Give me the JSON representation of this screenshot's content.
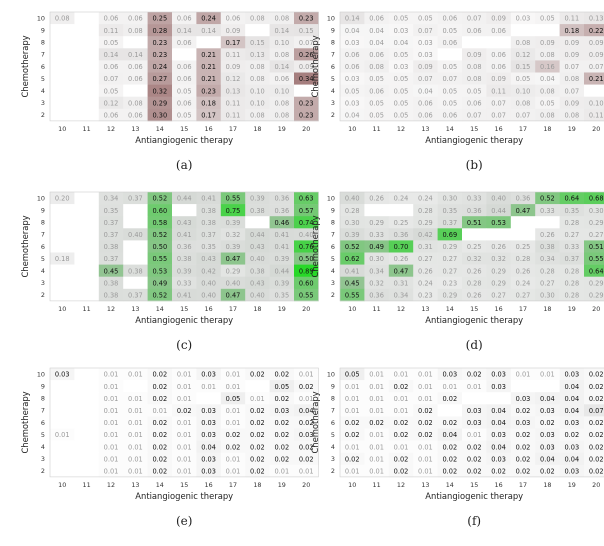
{
  "chart_data": [
    {
      "type": "heatmap",
      "panel": "a",
      "caption": "(a)",
      "xlabel": "Antiangiogenic therapy",
      "ylabel": "Chemotherapy",
      "x": [
        10,
        11,
        12,
        13,
        14,
        15,
        16,
        17,
        18,
        19,
        20
      ],
      "y": [
        10,
        9,
        8,
        7,
        6,
        5,
        4,
        3,
        2
      ],
      "colormap": "gray-brown",
      "values": [
        [
          0.08,
          null,
          0.06,
          0.06,
          0.25,
          0.06,
          0.24,
          0.06,
          0.08,
          0.08,
          0.23
        ],
        [
          null,
          null,
          0.11,
          0.08,
          0.28,
          0.14,
          0.14,
          0.09,
          null,
          0.14,
          0.15
        ],
        [
          null,
          null,
          0.05,
          null,
          0.23,
          0.06,
          null,
          0.17,
          0.15,
          0.1,
          0.07
        ],
        [
          null,
          null,
          0.14,
          0.14,
          0.23,
          null,
          0.21,
          0.11,
          0.13,
          0.08,
          0.26
        ],
        [
          null,
          null,
          0.06,
          0.06,
          0.24,
          0.06,
          0.21,
          0.09,
          0.08,
          0.14,
          0.09
        ],
        [
          null,
          null,
          0.07,
          0.06,
          0.27,
          0.06,
          0.21,
          0.12,
          0.08,
          0.06,
          0.34
        ],
        [
          null,
          null,
          0.05,
          null,
          0.32,
          0.05,
          0.23,
          0.13,
          0.1,
          0.1,
          null
        ],
        [
          null,
          null,
          0.12,
          0.08,
          0.29,
          0.06,
          0.18,
          0.11,
          0.1,
          0.08,
          0.23
        ],
        [
          null,
          null,
          0.06,
          0.06,
          0.3,
          0.05,
          0.17,
          0.11,
          0.08,
          0.08,
          0.23
        ]
      ]
    },
    {
      "type": "heatmap",
      "panel": "b",
      "caption": "(b)",
      "xlabel": "Antiangiogenic therapy",
      "ylabel": "Chemotherapy",
      "x": [
        10,
        11,
        12,
        13,
        14,
        15,
        16,
        17,
        18,
        19,
        20
      ],
      "y": [
        10,
        9,
        8,
        7,
        6,
        5,
        4,
        3,
        2
      ],
      "colormap": "gray-brown",
      "values": [
        [
          0.14,
          0.06,
          0.05,
          0.05,
          0.06,
          0.07,
          0.09,
          0.03,
          0.05,
          0.11,
          0.13
        ],
        [
          0.04,
          0.04,
          0.03,
          0.07,
          0.05,
          0.06,
          0.06,
          null,
          null,
          0.18,
          0.22
        ],
        [
          0.03,
          0.04,
          0.04,
          0.03,
          0.06,
          null,
          null,
          0.08,
          0.09,
          0.09,
          0.09
        ],
        [
          0.06,
          0.06,
          0.05,
          0.03,
          null,
          0.09,
          0.06,
          0.12,
          0.08,
          0.09,
          0.09
        ],
        [
          0.06,
          0.08,
          0.03,
          0.09,
          0.05,
          0.08,
          0.06,
          0.15,
          0.16,
          0.07,
          0.07
        ],
        [
          0.03,
          0.05,
          0.05,
          0.07,
          0.07,
          0.08,
          0.09,
          0.05,
          0.04,
          0.08,
          0.21
        ],
        [
          0.05,
          0.06,
          0.05,
          0.04,
          0.05,
          0.05,
          0.11,
          0.1,
          0.08,
          0.07,
          null
        ],
        [
          0.03,
          0.05,
          0.05,
          0.06,
          0.05,
          0.06,
          0.07,
          0.08,
          0.05,
          0.09,
          0.1
        ],
        [
          0.04,
          0.05,
          0.05,
          0.06,
          0.06,
          0.07,
          0.07,
          0.07,
          0.08,
          0.08,
          0.11
        ]
      ]
    },
    {
      "type": "heatmap",
      "panel": "c",
      "caption": "(c)",
      "xlabel": "Antiangiogenic therapy",
      "ylabel": "Chemotherapy",
      "x": [
        10,
        11,
        12,
        13,
        14,
        15,
        16,
        17,
        18,
        19,
        20
      ],
      "y": [
        10,
        9,
        8,
        7,
        6,
        5,
        4,
        3,
        2
      ],
      "colormap": "gray-green",
      "values": [
        [
          0.2,
          null,
          0.34,
          0.37,
          0.52,
          0.44,
          0.41,
          0.55,
          0.39,
          0.36,
          0.63
        ],
        [
          null,
          null,
          0.35,
          null,
          0.6,
          null,
          0.38,
          0.75,
          0.38,
          0.36,
          0.57
        ],
        [
          null,
          null,
          0.37,
          null,
          0.58,
          0.43,
          0.38,
          0.39,
          null,
          0.46,
          0.74
        ],
        [
          null,
          null,
          0.37,
          0.4,
          0.52,
          0.41,
          0.37,
          0.32,
          0.44,
          0.41,
          0.4
        ],
        [
          null,
          null,
          0.38,
          null,
          0.5,
          0.36,
          0.35,
          0.39,
          0.43,
          0.41,
          0.76
        ],
        [
          0.18,
          null,
          0.37,
          null,
          0.55,
          0.38,
          0.43,
          0.47,
          0.4,
          0.39,
          0.5
        ],
        [
          null,
          null,
          0.45,
          0.38,
          0.53,
          0.39,
          0.42,
          0.29,
          0.38,
          0.44,
          0.89
        ],
        [
          null,
          null,
          0.38,
          null,
          0.49,
          0.33,
          0.4,
          0.4,
          0.43,
          0.39,
          0.6
        ],
        [
          null,
          null,
          0.38,
          0.37,
          0.52,
          0.41,
          0.4,
          0.47,
          0.4,
          0.35,
          0.55
        ]
      ]
    },
    {
      "type": "heatmap",
      "panel": "d",
      "caption": "(d)",
      "xlabel": "Antiangiogenic therapy",
      "ylabel": "Chemotherapy",
      "x": [
        10,
        11,
        12,
        13,
        14,
        15,
        16,
        17,
        18,
        19,
        20
      ],
      "y": [
        10,
        9,
        8,
        7,
        6,
        5,
        4,
        3,
        2
      ],
      "colormap": "gray-green",
      "values": [
        [
          0.4,
          0.26,
          0.24,
          0.24,
          0.3,
          0.33,
          0.4,
          0.36,
          0.52,
          0.64,
          0.68
        ],
        [
          0.28,
          null,
          null,
          0.28,
          0.35,
          0.36,
          0.44,
          0.47,
          0.33,
          0.35,
          0.3
        ],
        [
          0.3,
          0.29,
          0.25,
          0.29,
          0.37,
          0.51,
          0.53,
          null,
          null,
          0.28,
          0.29
        ],
        [
          0.39,
          0.33,
          0.36,
          0.42,
          0.69,
          null,
          null,
          null,
          0.26,
          0.27,
          0.27
        ],
        [
          0.52,
          0.49,
          0.7,
          0.31,
          0.29,
          0.25,
          0.26,
          0.25,
          0.38,
          0.33,
          0.51
        ],
        [
          0.62,
          0.3,
          0.26,
          0.27,
          0.27,
          0.32,
          0.32,
          0.28,
          0.34,
          0.37,
          0.55
        ],
        [
          0.41,
          0.34,
          0.47,
          0.26,
          0.27,
          0.26,
          0.29,
          0.26,
          0.28,
          0.28,
          0.64
        ],
        [
          0.45,
          0.32,
          0.31,
          0.24,
          0.23,
          0.28,
          0.29,
          0.24,
          0.27,
          0.28,
          0.29
        ],
        [
          0.55,
          0.36,
          0.34,
          0.23,
          0.29,
          0.26,
          0.27,
          0.27,
          0.3,
          0.28,
          0.29
        ]
      ]
    },
    {
      "type": "heatmap",
      "panel": "e",
      "caption": "(e)",
      "xlabel": "Antiangiogenic therapy",
      "ylabel": "Chemotherapy",
      "x": [
        10,
        11,
        12,
        13,
        14,
        15,
        16,
        17,
        18,
        19,
        20
      ],
      "y": [
        10,
        9,
        8,
        7,
        6,
        5,
        4,
        3,
        2
      ],
      "colormap": "faint-gray",
      "values": [
        [
          0.03,
          null,
          0.01,
          0.01,
          0.02,
          0.01,
          0.03,
          0.01,
          0.02,
          0.02,
          0.01
        ],
        [
          null,
          null,
          0.01,
          null,
          0.02,
          0.01,
          0.01,
          0.01,
          null,
          0.05,
          0.02
        ],
        [
          null,
          null,
          0.01,
          0.01,
          0.02,
          0.01,
          null,
          0.05,
          0.01,
          0.02,
          0.01
        ],
        [
          null,
          null,
          0.01,
          0.01,
          0.01,
          0.02,
          0.03,
          0.01,
          0.02,
          0.03,
          0.04
        ],
        [
          null,
          null,
          0.01,
          0.01,
          0.02,
          0.01,
          0.03,
          0.01,
          0.02,
          0.02,
          0.02
        ],
        [
          0.01,
          null,
          0.01,
          0.01,
          0.02,
          0.01,
          0.03,
          0.02,
          0.02,
          0.02,
          0.03
        ],
        [
          null,
          null,
          0.01,
          0.01,
          0.02,
          0.01,
          0.04,
          0.02,
          0.02,
          0.02,
          0.02
        ],
        [
          null,
          null,
          0.01,
          0.01,
          0.02,
          0.01,
          0.03,
          0.01,
          0.02,
          0.02,
          0.02
        ],
        [
          null,
          null,
          0.01,
          0.01,
          0.02,
          0.01,
          0.03,
          0.01,
          0.02,
          0.01,
          0.01
        ]
      ]
    },
    {
      "type": "heatmap",
      "panel": "f",
      "caption": "(f)",
      "xlabel": "Antiangiogenic therapy",
      "ylabel": "Chemotherapy",
      "x": [
        10,
        11,
        12,
        13,
        14,
        15,
        16,
        17,
        18,
        19,
        20
      ],
      "y": [
        10,
        9,
        8,
        7,
        6,
        5,
        4,
        3,
        2
      ],
      "colormap": "faint-gray",
      "values": [
        [
          0.05,
          0.01,
          0.01,
          0.01,
          0.03,
          0.02,
          0.03,
          0.01,
          0.01,
          0.03,
          0.02
        ],
        [
          0.01,
          0.01,
          0.02,
          0.01,
          0.01,
          0.01,
          0.03,
          null,
          null,
          0.04,
          0.02
        ],
        [
          0.01,
          0.01,
          0.01,
          0.01,
          0.02,
          null,
          null,
          0.03,
          0.04,
          0.04,
          0.02
        ],
        [
          0.01,
          0.01,
          0.01,
          0.02,
          null,
          0.03,
          0.04,
          0.02,
          0.03,
          0.04,
          0.07
        ],
        [
          0.02,
          0.02,
          0.02,
          0.02,
          0.02,
          0.03,
          0.04,
          0.03,
          0.02,
          0.03,
          0.02
        ],
        [
          0.02,
          0.01,
          0.02,
          0.02,
          0.04,
          0.01,
          0.03,
          0.02,
          0.03,
          0.02,
          0.02
        ],
        [
          0.01,
          0.01,
          0.01,
          0.01,
          0.02,
          0.02,
          0.04,
          0.02,
          0.03,
          0.03,
          0.02
        ],
        [
          0.02,
          0.01,
          0.02,
          0.01,
          0.02,
          0.02,
          0.03,
          0.02,
          0.04,
          0.04,
          0.02
        ],
        [
          0.01,
          0.01,
          0.02,
          0.01,
          0.02,
          0.02,
          0.02,
          0.02,
          0.02,
          0.03,
          0.02
        ]
      ]
    }
  ]
}
